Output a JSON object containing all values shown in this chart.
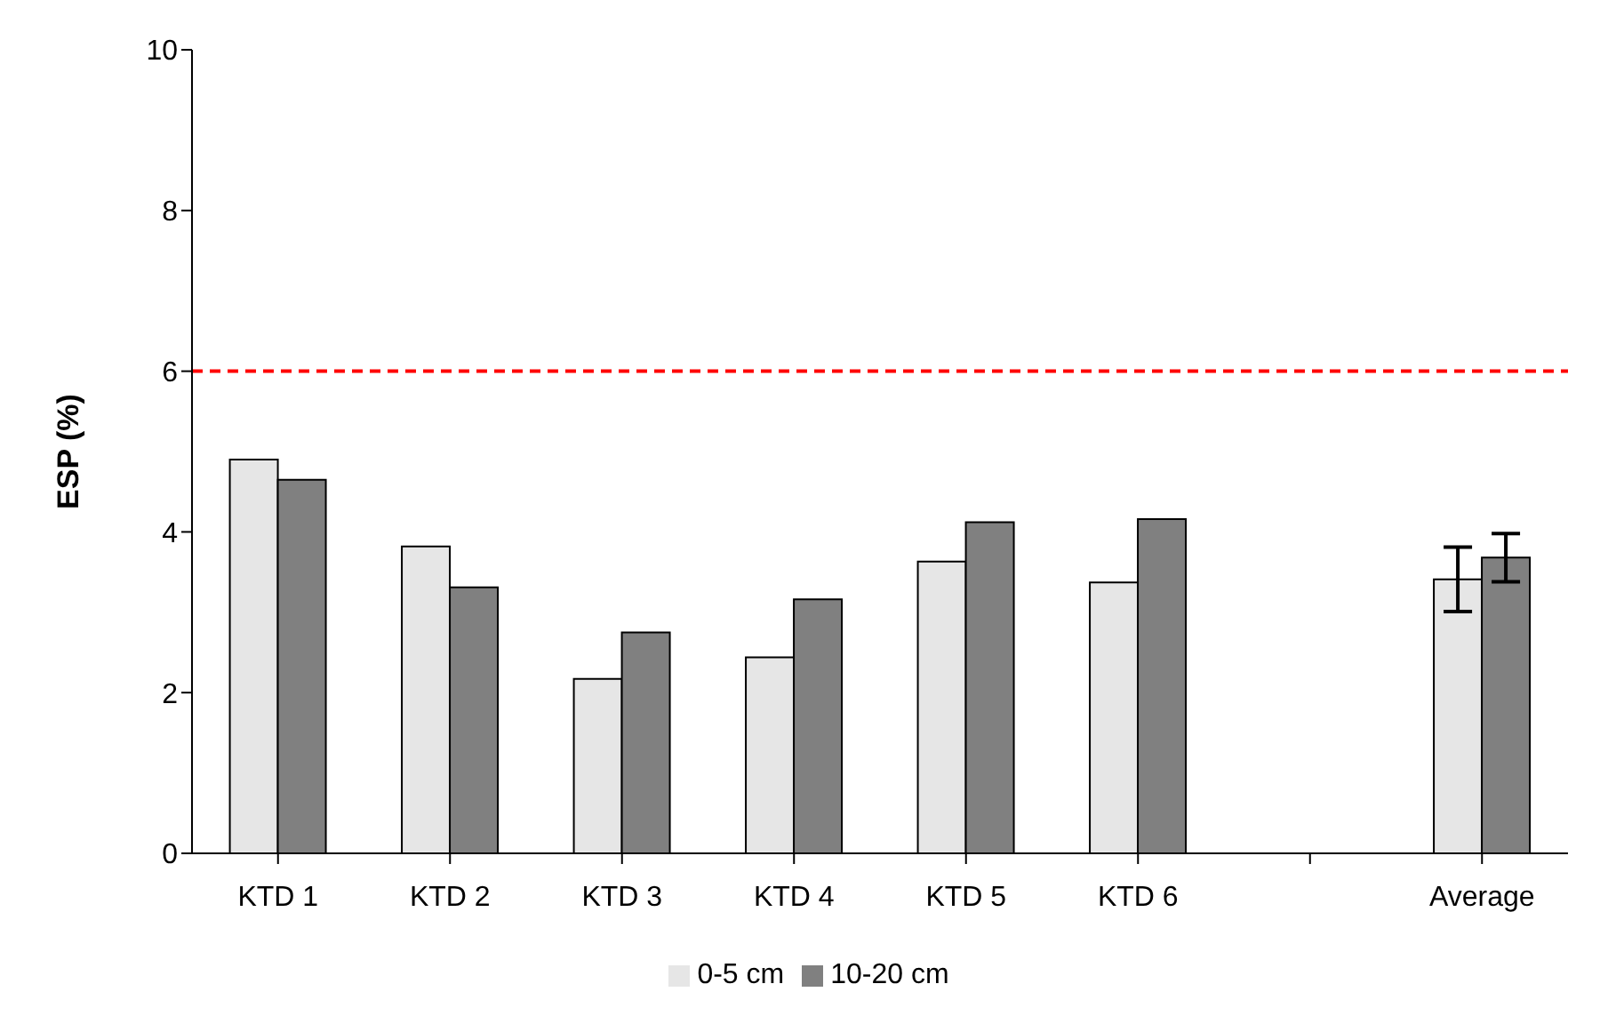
{
  "chart_data": {
    "type": "bar",
    "ylabel": "ESP (%)",
    "categories": [
      "KTD 1",
      "KTD 2",
      "KTD 3",
      "KTD 4",
      "KTD 5",
      "KTD 6",
      null,
      "Average"
    ],
    "series": [
      {
        "name": "0-5 cm",
        "color": "#e6e6e6",
        "values": [
          4.9,
          3.82,
          2.17,
          2.44,
          3.63,
          3.37,
          null,
          3.41
        ],
        "errors": [
          null,
          null,
          null,
          null,
          null,
          null,
          null,
          0.4
        ]
      },
      {
        "name": "10-20 cm",
        "color": "#808080",
        "values": [
          4.65,
          3.31,
          2.75,
          3.16,
          4.12,
          4.16,
          null,
          3.68
        ],
        "errors": [
          null,
          null,
          null,
          null,
          null,
          null,
          null,
          0.3
        ]
      }
    ],
    "ylim": [
      0,
      10
    ],
    "yticks": [
      0,
      2,
      4,
      6,
      8,
      10
    ],
    "grid": false,
    "legend": "bottom",
    "ref_lines": [
      {
        "axis": "y",
        "value": 6,
        "color": "#ff0000",
        "line_style": "dashed"
      }
    ]
  }
}
